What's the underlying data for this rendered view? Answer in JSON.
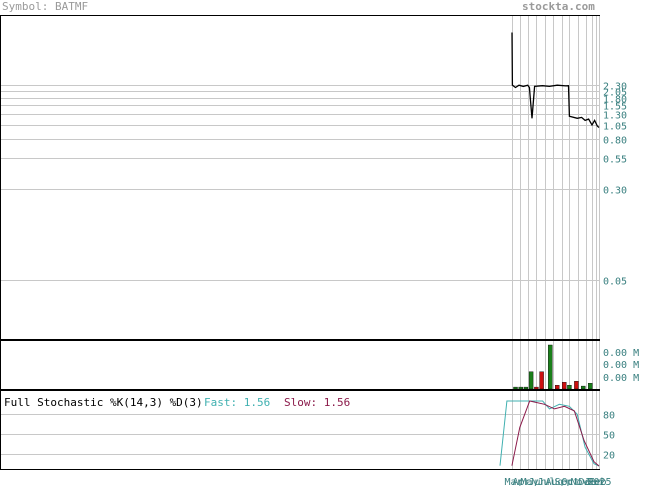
{
  "header": {
    "symbol": "Symbol: BATMF",
    "brand": "stockta.com"
  },
  "colors": {
    "grid": "#c8c8c8",
    "price_line": "#000000",
    "volume_up": "#1a7f1a",
    "volume_down": "#cc1010",
    "fast_line": "#40b0b0",
    "slow_line": "#8b1a4a",
    "label_text": "#3a8080"
  },
  "stochastic": {
    "title": "Full Stochastic %K(14,3) %D(3)",
    "fast_label": "Fast: 1.56",
    "slow_label": "Slow: 1.56"
  },
  "chart_data": [
    {
      "type": "line",
      "panel": "price",
      "scale": "log",
      "y_tick_labels": [
        "2.30",
        "2.05",
        "1.80",
        "1.55",
        "1.30",
        "1.05",
        "0.80",
        "0.55",
        "0.30",
        "0.05"
      ],
      "y_ticks": [
        2.3,
        2.05,
        1.8,
        1.55,
        1.3,
        1.05,
        0.8,
        0.55,
        0.3,
        0.05
      ],
      "x_tick_labels": [
        "Mar",
        "Apr",
        "May",
        "Jun",
        "Jul",
        "Aug",
        "Sep",
        "Oct",
        "Nov",
        "Dec",
        "Jan",
        "Feb",
        "2025"
      ],
      "x_ticks": [
        0.0,
        0.09,
        0.18,
        0.28,
        0.38,
        0.47,
        0.57,
        0.66,
        0.76,
        0.85,
        0.92,
        0.96,
        1.0
      ],
      "x_window": [
        0.0,
        1.0
      ],
      "series": [
        {
          "x": [
            0.0,
            0.005,
            0.04,
            0.08,
            0.13,
            0.18,
            0.2,
            0.23,
            0.26,
            0.35,
            0.43,
            0.52,
            0.62,
            0.65,
            0.66,
            0.75,
            0.8,
            0.84,
            0.88,
            0.92,
            0.95,
            0.98,
            1.0
          ],
          "y": [
            6.5,
            2.3,
            2.2,
            2.3,
            2.25,
            2.3,
            2.2,
            1.2,
            2.25,
            2.28,
            2.25,
            2.3,
            2.27,
            2.28,
            1.25,
            1.2,
            1.22,
            1.15,
            1.18,
            1.05,
            1.15,
            1.03,
            1.0
          ]
        }
      ]
    },
    {
      "type": "bar",
      "panel": "volume",
      "y_tick_labels": [
        "0.00 M",
        "0.00 M",
        "0.00 M"
      ],
      "x": [
        0.04,
        0.1,
        0.16,
        0.22,
        0.28,
        0.34,
        0.44,
        0.52,
        0.6,
        0.66,
        0.74,
        0.82,
        0.9
      ],
      "values": [
        0.1,
        0.1,
        0.1,
        0.9,
        0.1,
        0.9,
        2.3,
        0.2,
        0.35,
        0.2,
        0.4,
        0.15,
        0.3
      ],
      "direction": [
        "up",
        "up",
        "up",
        "up",
        "down",
        "down",
        "up",
        "down",
        "down",
        "up",
        "down",
        "up",
        "up"
      ]
    },
    {
      "type": "line",
      "panel": "stochastic",
      "y_tick_labels": [
        "80",
        "50",
        "20"
      ],
      "y_ticks": [
        80,
        50,
        20
      ],
      "ylim": [
        0,
        100
      ],
      "series": [
        {
          "name": "Fast",
          "x": [
            0.0,
            0.07,
            0.14,
            0.35,
            0.43,
            0.5,
            0.6,
            0.7,
            0.78,
            0.86,
            0.95,
            1.0
          ],
          "y": [
            2,
            100,
            100,
            100,
            100,
            88,
            95,
            92,
            80,
            30,
            5,
            1.56
          ]
        },
        {
          "name": "Slow",
          "x": [
            0.12,
            0.2,
            0.3,
            0.45,
            0.55,
            0.65,
            0.75,
            0.85,
            0.95,
            1.0
          ],
          "y": [
            2,
            60,
            100,
            95,
            88,
            92,
            85,
            40,
            8,
            1.56
          ]
        }
      ]
    }
  ]
}
